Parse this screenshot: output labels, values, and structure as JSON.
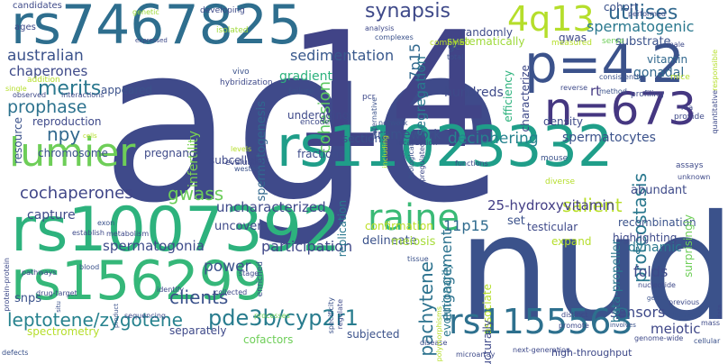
{
  "words": [
    {
      "text": "age",
      "color": "#3f4a8a"
    },
    {
      "text": "14",
      "color": "#414487"
    },
    {
      "text": "nudc",
      "color": "#3b528b"
    },
    {
      "text": "rs1007392",
      "color": "#2db27d"
    },
    {
      "text": "rs7467825",
      "color": "#2e6e8e"
    },
    {
      "text": "rs11023332",
      "color": "#1f9e89"
    },
    {
      "text": "rs156299",
      "color": "#35b779"
    },
    {
      "text": "p=4.2",
      "color": "#3b528b"
    },
    {
      "text": "n=673",
      "color": "#453781"
    },
    {
      "text": "4q13",
      "color": "#b5de2b"
    },
    {
      "text": "lumier",
      "color": "#6ece58"
    },
    {
      "text": "raine",
      "color": "#3aba76"
    },
    {
      "text": "rs1155563",
      "color": "#2d708e"
    },
    {
      "text": "leptotene/zygotene",
      "color": "#26828e"
    },
    {
      "text": "pde3b/cyp2r1",
      "color": "#287c8e"
    },
    {
      "text": "synapsis",
      "color": "#3e4989"
    },
    {
      "text": "utilises",
      "color": "#31688e"
    },
    {
      "text": "spermatogenic",
      "color": "#2a788e"
    },
    {
      "text": "australian",
      "color": "#3b528b"
    },
    {
      "text": "sedimentation",
      "color": "#38588c"
    },
    {
      "text": "prophase",
      "color": "#2c728e"
    },
    {
      "text": "merits",
      "color": "#2a788e"
    },
    {
      "text": "chaperones",
      "color": "#3e4a89"
    },
    {
      "text": "cochaperones",
      "color": "#404688"
    },
    {
      "text": "gwass",
      "color": "#6ccd5a"
    },
    {
      "text": "npy",
      "color": "#31688e"
    },
    {
      "text": "clients",
      "color": "#3b528b"
    },
    {
      "text": "salient",
      "color": "#b8de29"
    },
    {
      "text": "proteostasis",
      "color": "#2a788e"
    },
    {
      "text": "pachytene",
      "color": "#2c728e"
    },
    {
      "text": "engagement",
      "color": "#2c728e"
    },
    {
      "text": "cohesion",
      "color": "#5ec962"
    },
    {
      "text": "deciphering",
      "color": "#26828e"
    },
    {
      "text": "spermatocytes",
      "color": "#3b528b"
    },
    {
      "text": "25-hydroxyvitamin",
      "color": "#433e85"
    },
    {
      "text": "uncharacterized",
      "color": "#3e4989"
    },
    {
      "text": "participation",
      "color": "#3f4788"
    },
    {
      "text": "spermatogonia",
      "color": "#3e4c8a"
    },
    {
      "text": "power",
      "color": "#3b528b"
    },
    {
      "text": "sensors",
      "color": "#3e4989"
    },
    {
      "text": "meiotic",
      "color": "#3f4788"
    },
    {
      "text": "folds",
      "color": "#3e4a89"
    },
    {
      "text": "dynamic",
      "color": "#2a788e"
    },
    {
      "text": "11p15",
      "color": "#2f6b8e"
    },
    {
      "text": "7p15",
      "color": "#31688e"
    },
    {
      "text": "segregation",
      "color": "#2a788e"
    },
    {
      "text": "hundreds",
      "color": "#3e4a89"
    },
    {
      "text": "rt",
      "color": "#443a83"
    },
    {
      "text": "gonadal",
      "color": "#31688e"
    },
    {
      "text": "gradient",
      "color": "#2db27d"
    },
    {
      "text": "framework",
      "color": "#3b528b"
    },
    {
      "text": "capture",
      "color": "#3e4a89"
    },
    {
      "text": "infertility",
      "color": "#7ad151"
    },
    {
      "text": "spermatogenesis",
      "color": "#31688e"
    },
    {
      "text": "resource",
      "color": "#3b528b"
    },
    {
      "text": "reproduction",
      "color": "#3e4989"
    },
    {
      "text": "chromosome",
      "color": "#3b528b"
    },
    {
      "text": "pregnancy",
      "color": "#3e4a89"
    },
    {
      "text": "appeared",
      "color": "#3b528b"
    },
    {
      "text": "undergoing",
      "color": "#3e4989"
    },
    {
      "text": "fractions",
      "color": "#3e4c8a"
    },
    {
      "text": "sections",
      "color": "#3b528b"
    },
    {
      "text": "subcellular",
      "color": "#3e4989"
    },
    {
      "text": "uncover",
      "color": "#3e4a89"
    },
    {
      "text": "delineate",
      "color": "#3b528b"
    },
    {
      "text": "meiosis",
      "color": "#a5db36"
    },
    {
      "text": "testicular",
      "color": "#3e4989"
    },
    {
      "text": "recombination",
      "color": "#3b528b"
    },
    {
      "text": "highlighting",
      "color": "#3e4a89"
    },
    {
      "text": "beta-propeller",
      "color": "#2a788e"
    },
    {
      "text": "surprisingly",
      "color": "#6ece58"
    },
    {
      "text": "expand",
      "color": "#b5de2b"
    },
    {
      "text": "set",
      "color": "#3b528b"
    },
    {
      "text": "confirmation",
      "color": "#bddf26"
    },
    {
      "text": "evolutionarily",
      "color": "#2a788e"
    },
    {
      "text": "associate",
      "color": "#b5de2b"
    },
    {
      "text": "structurally",
      "color": "#3e4989"
    },
    {
      "text": "abundant",
      "color": "#3e4a89"
    },
    {
      "text": "vitamin",
      "color": "#31688e"
    },
    {
      "text": "substrate",
      "color": "#3b528b"
    },
    {
      "text": "characterize",
      "color": "#3e4989"
    },
    {
      "text": "efficiency",
      "color": "#2db27d"
    },
    {
      "text": "density",
      "color": "#3e4a89"
    },
    {
      "text": "cohort",
      "color": "#3b528b"
    },
    {
      "text": "randomly",
      "color": "#3e4a89"
    },
    {
      "text": "systematically",
      "color": "#9fda3a"
    },
    {
      "text": "gwas",
      "color": "#3e4989"
    },
    {
      "text": "gc",
      "color": "#3b528b"
    },
    {
      "text": "combined",
      "color": "#b8de29"
    },
    {
      "text": "snps",
      "color": "#3b528b"
    },
    {
      "text": "spectrometry",
      "color": "#b5de2b"
    },
    {
      "text": "separately",
      "color": "#3e4989"
    },
    {
      "text": "cofactors",
      "color": "#6ece58"
    },
    {
      "text": "subjected",
      "color": "#3b528b"
    },
    {
      "text": "high-throughput",
      "color": "#3e4989"
    },
    {
      "text": "replication",
      "color": "#2a788e"
    },
    {
      "text": "candidates",
      "color": "#3e4a89"
    },
    {
      "text": "ages",
      "color": "#3e4989"
    },
    {
      "text": "genetic",
      "color": "#9fda3a"
    },
    {
      "text": "developing",
      "color": "#3e4a89"
    },
    {
      "text": "isolated",
      "color": "#9fda3a"
    },
    {
      "text": "analysis",
      "color": "#3e4989"
    },
    {
      "text": "complexes",
      "color": "#3b528b"
    },
    {
      "text": "performed",
      "color": "#3e4a89"
    },
    {
      "text": "expressed",
      "color": "#3e4a89"
    },
    {
      "text": "measured",
      "color": "#b5de2b"
    },
    {
      "text": "serve",
      "color": "#6ece58"
    },
    {
      "text": "male",
      "color": "#3e4a89"
    },
    {
      "text": "mice",
      "color": "#b5de2b"
    },
    {
      "text": "vivo",
      "color": "#3b528b"
    },
    {
      "text": "hybridization",
      "color": "#3e4989"
    },
    {
      "text": "total",
      "color": "#3b528b"
    },
    {
      "text": "interactions",
      "color": "#3e4a89"
    },
    {
      "text": "addition",
      "color": "#b5de2b"
    },
    {
      "text": "single",
      "color": "#b5de2b"
    },
    {
      "text": "observed",
      "color": "#3e4989"
    },
    {
      "text": "failure",
      "color": "#3b528b"
    },
    {
      "text": "encoded",
      "color": "#3e4a89"
    },
    {
      "text": "pcr",
      "color": "#3e4989"
    },
    {
      "text": "network",
      "color": "#3b528b"
    },
    {
      "text": "reverse",
      "color": "#3e4a89"
    },
    {
      "text": "method",
      "color": "#3b528b"
    },
    {
      "text": "profiling",
      "color": "#3e4989"
    },
    {
      "text": "provide",
      "color": "#3e4a89"
    },
    {
      "text": "consistently",
      "color": "#3b528b"
    },
    {
      "text": "rna",
      "color": "#3e4989"
    },
    {
      "text": "responsible",
      "color": "#b5de2b"
    },
    {
      "text": "quantitative",
      "color": "#3e4a89"
    },
    {
      "text": "levels",
      "color": "#b5de2b"
    },
    {
      "text": "evaluate",
      "color": "#3e4989"
    },
    {
      "text": "alternative",
      "color": "#3b528b"
    },
    {
      "text": "localization",
      "color": "#3e4a89"
    },
    {
      "text": "biological",
      "color": "#3b528b"
    },
    {
      "text": "upregulated",
      "color": "#3e4989"
    },
    {
      "text": "including",
      "color": "#b5de2b"
    },
    {
      "text": "functions",
      "color": "#3e4a89"
    },
    {
      "text": "mouse",
      "color": "#3b528b"
    },
    {
      "text": "diverse",
      "color": "#b5de2b"
    },
    {
      "text": "assays",
      "color": "#3e4a89"
    },
    {
      "text": "unknown",
      "color": "#3e4989"
    },
    {
      "text": "cells",
      "color": "#b5de2b"
    },
    {
      "text": "western",
      "color": "#3b528b"
    },
    {
      "text": "establish",
      "color": "#3e4a89"
    },
    {
      "text": "metabolism",
      "color": "#3e4989"
    },
    {
      "text": "exon",
      "color": "#3b528b"
    },
    {
      "text": "protein-protein",
      "color": "#3e4a89"
    },
    {
      "text": "blood",
      "color": "#3b528b"
    },
    {
      "text": "pathways",
      "color": "#3e4989"
    },
    {
      "text": "drug-target",
      "color": "#3e4a89"
    },
    {
      "text": "situ",
      "color": "#3b528b"
    },
    {
      "text": "stage",
      "color": "#3e4989"
    },
    {
      "text": "enriched",
      "color": "#3b528b"
    },
    {
      "text": "identify",
      "color": "#3e4a89"
    },
    {
      "text": "collected",
      "color": "#3e4989"
    },
    {
      "text": "product",
      "color": "#3b528b"
    },
    {
      "text": "sequencing",
      "color": "#3e4a89"
    },
    {
      "text": "processes",
      "color": "#6ece58"
    },
    {
      "text": "specificity",
      "color": "#3b528b"
    },
    {
      "text": "regulate",
      "color": "#3e4989"
    },
    {
      "text": "disease",
      "color": "#3e4a89"
    },
    {
      "text": "polymorphisms",
      "color": "#b5de2b"
    },
    {
      "text": "tissue",
      "color": "#3b528b"
    },
    {
      "text": "distinct",
      "color": "#3e4989"
    },
    {
      "text": "promote",
      "color": "#3e4a89"
    },
    {
      "text": "genes",
      "color": "#3b528b"
    },
    {
      "text": "nucleotide",
      "color": "#3e4989"
    },
    {
      "text": "previous",
      "color": "#3e4a89"
    },
    {
      "text": "involves",
      "color": "#3b528b"
    },
    {
      "text": "genome-wide",
      "color": "#3e4989"
    },
    {
      "text": "humans",
      "color": "#3b528b"
    },
    {
      "text": "mass",
      "color": "#3e4a89"
    },
    {
      "text": "cellular",
      "color": "#3b528b"
    },
    {
      "text": "data",
      "color": "#3e4989"
    },
    {
      "text": "microarray",
      "color": "#3e4a89"
    },
    {
      "text": "next-generation",
      "color": "#3e4989"
    },
    {
      "text": "defects",
      "color": "#3b528b"
    }
  ]
}
